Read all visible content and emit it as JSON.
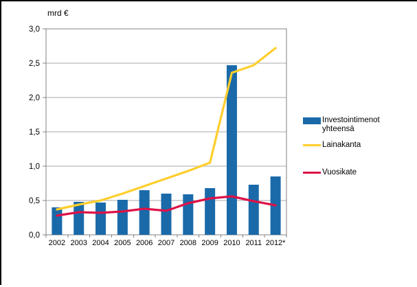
{
  "chart_data": {
    "type": "bar+line",
    "title": "mrd €",
    "categories": [
      "2002",
      "2003",
      "2004",
      "2005",
      "2006",
      "2007",
      "2008",
      "2009",
      "2010",
      "2011",
      "2012*"
    ],
    "series": [
      {
        "name": "Investointimenot yhteensä",
        "type": "bar",
        "color": "#1A6AAA",
        "values": [
          0.4,
          0.48,
          0.47,
          0.51,
          0.65,
          0.6,
          0.59,
          0.68,
          2.47,
          0.73,
          0.85
        ]
      },
      {
        "name": "Lainakanta",
        "type": "line",
        "color": "#FFCE2B",
        "values": [
          0.37,
          0.44,
          0.5,
          0.6,
          0.71,
          0.82,
          0.93,
          1.05,
          2.36,
          2.47,
          2.72
        ]
      },
      {
        "name": "Vuosikate",
        "type": "line",
        "color": "#DD1247",
        "values": [
          0.28,
          0.33,
          0.32,
          0.34,
          0.38,
          0.35,
          0.46,
          0.53,
          0.56,
          0.49,
          0.43
        ]
      }
    ],
    "ylabel_unit": "mrd €",
    "ylim": [
      0,
      3
    ],
    "ytick_step": 0.5,
    "ytick_labels": [
      "0,0",
      "0,5",
      "1,0",
      "1,5",
      "2,0",
      "2,5",
      "3,0"
    ],
    "grid": true,
    "legend_position": "right",
    "colors": {
      "grid": "#A9A9A9",
      "axis": "#808080",
      "text": "#000000"
    }
  },
  "legend": {
    "items": [
      {
        "label": "Investointimenot yhteensä",
        "swatch": "bar"
      },
      {
        "label": "Lainakanta",
        "swatch": "line"
      },
      {
        "label": "Vuosikate",
        "swatch": "line"
      }
    ]
  }
}
